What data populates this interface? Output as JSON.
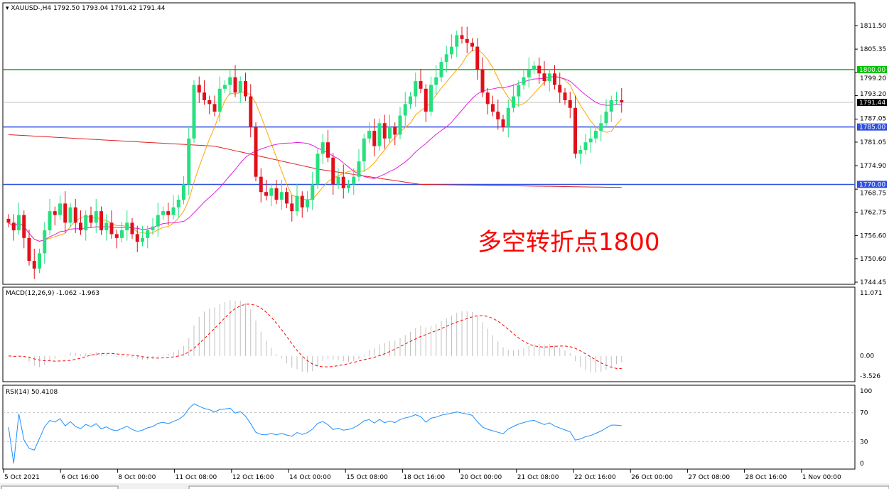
{
  "header": {
    "symbol": "XAUUSD-,H4",
    "ohlc": "1792.50 1793.04 1791.42 1791.44"
  },
  "annotation": "多空转折点1800",
  "colors": {
    "bull": "#26e07f",
    "bear": "#e0101a",
    "level_green": "#00c000",
    "level_blue": "#3050e0",
    "ma_fast": "#ffa500",
    "ma_mid": "#e020e0",
    "ma_slow": "#e02020"
  },
  "chart_data": [
    {
      "type": "candlestick",
      "ylim": [
        1744.45,
        1811.5
      ],
      "y_ticks": [
        "1811.50",
        "1805.35",
        "1799.20",
        "1793.20",
        "1787.05",
        "1781.05",
        "1774.90",
        "1768.75",
        "1762.75",
        "1756.60",
        "1750.60",
        "1744.45"
      ],
      "levels": [
        {
          "value": 1800,
          "label": "1800.00",
          "color": "#00c000"
        },
        {
          "value": 1785,
          "label": "1785.00",
          "color": "#3050e0"
        },
        {
          "value": 1770,
          "label": "1770.00",
          "color": "#3050e0"
        },
        {
          "value": 1791.44,
          "label": "1791.44",
          "color": "#000000"
        }
      ],
      "closes": [
        1760,
        1758,
        1762,
        1756,
        1750,
        1748,
        1752,
        1758,
        1763,
        1762,
        1765,
        1760,
        1764,
        1760,
        1758,
        1762,
        1760,
        1763,
        1758,
        1760,
        1757,
        1756,
        1758,
        1760,
        1757,
        1755,
        1756,
        1758,
        1759,
        1762,
        1763,
        1762,
        1764,
        1766,
        1770,
        1782,
        1796,
        1794,
        1792,
        1791,
        1789,
        1795,
        1796,
        1798,
        1794,
        1797,
        1793,
        1785,
        1772,
        1768,
        1767,
        1769,
        1766,
        1768,
        1765,
        1763,
        1767,
        1764,
        1766,
        1770,
        1778,
        1781,
        1777,
        1770,
        1772,
        1769,
        1770,
        1772,
        1776,
        1782,
        1784,
        1780,
        1786,
        1782,
        1785,
        1783,
        1788,
        1791,
        1793,
        1797,
        1795,
        1789,
        1796,
        1798,
        1802,
        1804,
        1806,
        1809,
        1808,
        1807,
        1806,
        1800,
        1794,
        1791,
        1789,
        1787,
        1785,
        1790,
        1793,
        1796,
        1798,
        1800,
        1801,
        1799,
        1797,
        1799,
        1796,
        1794,
        1792,
        1790,
        1778,
        1779,
        1781,
        1782,
        1784,
        1786,
        1789,
        1792,
        1792,
        1791.44
      ],
      "slow_ma": [
        [
          0,
          1783
        ],
        [
          40,
          1780
        ],
        [
          60,
          1774
        ],
        [
          80,
          1770
        ],
        [
          129,
          1769
        ]
      ],
      "x_ticks": [
        "5 Oct 2021",
        "6 Oct 16:00",
        "8 Oct 00:00",
        "11 Oct 08:00",
        "12 Oct 16:00",
        "14 Oct 00:00",
        "15 Oct 08:00",
        "18 Oct 16:00",
        "20 Oct 00:00",
        "21 Oct 08:00",
        "22 Oct 16:00",
        "26 Oct 00:00",
        "27 Oct 08:00",
        "28 Oct 16:00",
        "1 Nov 00:00"
      ]
    },
    {
      "type": "macd",
      "label": "MACD(12,26,9) -1.062 -1.963",
      "ylim": [
        -3.526,
        11.071
      ],
      "y_ticks": [
        "11.071",
        "0.00",
        "-3.526"
      ]
    },
    {
      "type": "rsi",
      "label": "RSI(14) 50.4108",
      "ylim": [
        0,
        100
      ],
      "y_ticks": [
        "100",
        "70",
        "30",
        "0"
      ]
    }
  ]
}
